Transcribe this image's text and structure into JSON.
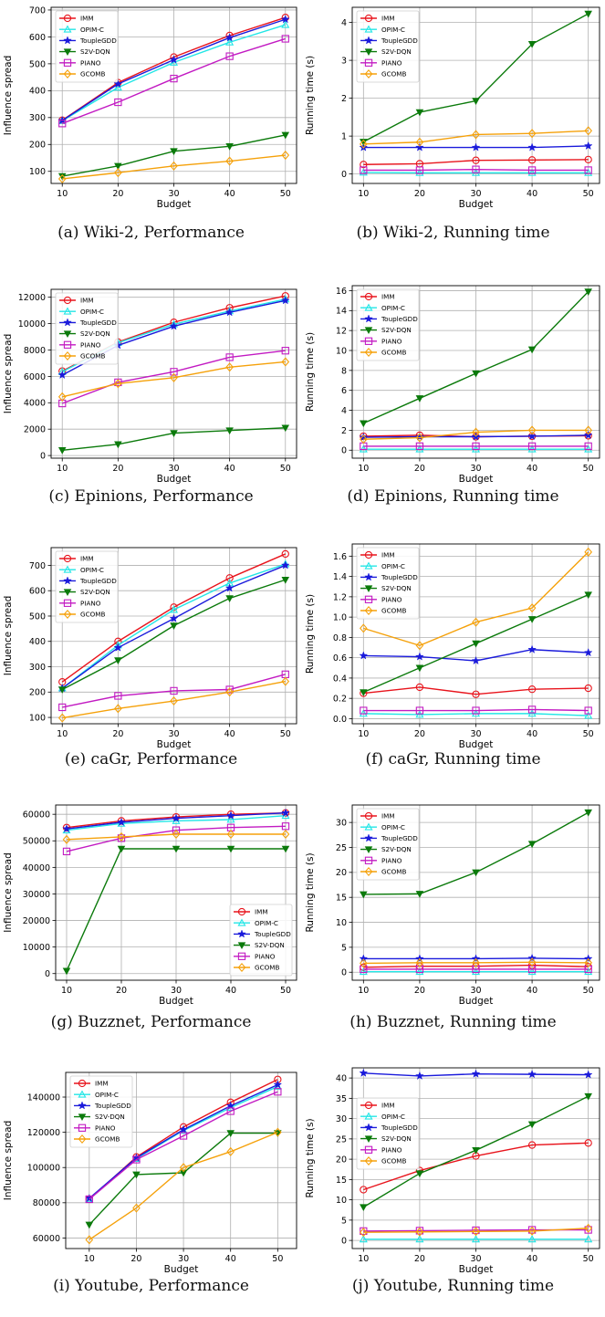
{
  "series_styles": {
    "IMM": {
      "color": "#e8141c",
      "marker": "circle"
    },
    "OPIM-C": {
      "color": "#22e6e6",
      "marker": "triangle-up"
    },
    "ToupleGDD": {
      "color": "#1a1adb",
      "marker": "star"
    },
    "S2V-DQN": {
      "color": "#0b7a0b",
      "marker": "triangle-down"
    },
    "PIANO": {
      "color": "#c21ac2",
      "marker": "square"
    },
    "GCOMB": {
      "color": "#f5a10a",
      "marker": "diamond"
    }
  },
  "chart_data": [
    {
      "id": "a",
      "type": "line",
      "caption": "(a) Wiki-2, Performance",
      "xlabel": "Budget",
      "ylabel": "Influence spread",
      "x": [
        10,
        20,
        30,
        40,
        50
      ],
      "xlim": [
        8,
        52
      ],
      "ylim": [
        55,
        710
      ],
      "xticks": [
        10,
        20,
        30,
        40,
        50
      ],
      "yticks": [
        100,
        200,
        300,
        400,
        500,
        600,
        700
      ],
      "yticklabels": [
        "100",
        "200",
        "300",
        "400",
        "500",
        "600",
        "700"
      ],
      "legend": "top-left",
      "series": [
        {
          "name": "IMM",
          "values": [
            290,
            430,
            525,
            605,
            672
          ]
        },
        {
          "name": "OPIM-C",
          "values": [
            288,
            412,
            505,
            580,
            645
          ]
        },
        {
          "name": "ToupleGDD",
          "values": [
            289,
            425,
            515,
            597,
            665
          ]
        },
        {
          "name": "S2V-DQN",
          "values": [
            82,
            120,
            175,
            193,
            235
          ]
        },
        {
          "name": "PIANO",
          "values": [
            278,
            357,
            445,
            528,
            593
          ]
        },
        {
          "name": "GCOMB",
          "values": [
            72,
            95,
            120,
            138,
            160
          ]
        }
      ]
    },
    {
      "id": "b",
      "type": "line",
      "caption": "(b) Wiki-2, Running time",
      "xlabel": "Budget",
      "ylabel": "Running time (s)",
      "x": [
        10,
        20,
        30,
        40,
        50
      ],
      "xlim": [
        8,
        52
      ],
      "ylim": [
        -0.25,
        4.4
      ],
      "xticks": [
        10,
        20,
        30,
        40,
        50
      ],
      "yticks": [
        0,
        1,
        2,
        3,
        4
      ],
      "yticklabels": [
        "0",
        "1",
        "2",
        "3",
        "4"
      ],
      "legend": "top-left",
      "series": [
        {
          "name": "IMM",
          "values": [
            0.25,
            0.27,
            0.36,
            0.37,
            0.38
          ]
        },
        {
          "name": "OPIM-C",
          "values": [
            0.04,
            0.03,
            0.03,
            0.03,
            0.03
          ]
        },
        {
          "name": "ToupleGDD",
          "values": [
            0.7,
            0.7,
            0.7,
            0.7,
            0.74
          ]
        },
        {
          "name": "S2V-DQN",
          "values": [
            0.85,
            1.63,
            1.93,
            3.43,
            4.23
          ]
        },
        {
          "name": "PIANO",
          "values": [
            0.1,
            0.1,
            0.12,
            0.1,
            0.1
          ]
        },
        {
          "name": "GCOMB",
          "values": [
            0.79,
            0.84,
            1.04,
            1.07,
            1.14
          ]
        }
      ]
    },
    {
      "id": "c",
      "type": "line",
      "caption": "(c) Epinions, Performance",
      "xlabel": "Budget",
      "ylabel": "Influence spread",
      "x": [
        10,
        20,
        30,
        40,
        50
      ],
      "xlim": [
        8,
        52
      ],
      "ylim": [
        -200,
        12600
      ],
      "xticks": [
        10,
        20,
        30,
        40,
        50
      ],
      "yticks": [
        0,
        2000,
        4000,
        6000,
        8000,
        10000,
        12000
      ],
      "yticklabels": [
        "0",
        "2000",
        "4000",
        "6000",
        "8000",
        "10000",
        "12000"
      ],
      "legend": "top-left",
      "series": [
        {
          "name": "IMM",
          "values": [
            6400,
            8600,
            10100,
            11200,
            12100
          ]
        },
        {
          "name": "OPIM-C",
          "values": [
            6350,
            8550,
            9950,
            10950,
            11850
          ]
        },
        {
          "name": "ToupleGDD",
          "values": [
            6100,
            8350,
            9800,
            10850,
            11750
          ]
        },
        {
          "name": "S2V-DQN",
          "values": [
            400,
            850,
            1700,
            1900,
            2100
          ]
        },
        {
          "name": "PIANO",
          "values": [
            3950,
            5550,
            6350,
            7450,
            7950
          ]
        },
        {
          "name": "GCOMB",
          "values": [
            4450,
            5450,
            5900,
            6700,
            7100
          ]
        }
      ]
    },
    {
      "id": "d",
      "type": "line",
      "caption": "(d) Epinions, Running time",
      "xlabel": "Budget",
      "ylabel": "Running time (s)",
      "x": [
        10,
        20,
        30,
        40,
        50
      ],
      "xlim": [
        8,
        52
      ],
      "ylim": [
        -0.8,
        16.5
      ],
      "xticks": [
        10,
        20,
        30,
        40,
        50
      ],
      "yticks": [
        0,
        2,
        4,
        6,
        8,
        10,
        12,
        14,
        16
      ],
      "yticklabels": [
        "0",
        "2",
        "4",
        "6",
        "8",
        "10",
        "12",
        "14",
        "16"
      ],
      "legend": "top-left",
      "series": [
        {
          "name": "IMM",
          "values": [
            1.4,
            1.5,
            1.35,
            1.4,
            1.45
          ]
        },
        {
          "name": "OPIM-C",
          "values": [
            0.1,
            0.1,
            0.1,
            0.1,
            0.1
          ]
        },
        {
          "name": "ToupleGDD",
          "values": [
            1.3,
            1.35,
            1.35,
            1.4,
            1.5
          ]
        },
        {
          "name": "S2V-DQN",
          "values": [
            2.7,
            5.2,
            7.7,
            10.1,
            15.9
          ]
        },
        {
          "name": "PIANO",
          "values": [
            0.4,
            0.4,
            0.4,
            0.4,
            0.4
          ]
        },
        {
          "name": "GCOMB",
          "values": [
            1.1,
            1.25,
            1.8,
            2.0,
            2.0
          ]
        }
      ]
    },
    {
      "id": "e",
      "type": "line",
      "caption": "(e) caGr, Performance",
      "xlabel": "Budget",
      "ylabel": "Influence spread",
      "x": [
        10,
        20,
        30,
        40,
        50
      ],
      "xlim": [
        8,
        52
      ],
      "ylim": [
        75,
        770
      ],
      "xticks": [
        10,
        20,
        30,
        40,
        50
      ],
      "yticks": [
        100,
        200,
        300,
        400,
        500,
        600,
        700
      ],
      "yticklabels": [
        "100",
        "200",
        "300",
        "400",
        "500",
        "600",
        "700"
      ],
      "legend": "top-left",
      "series": [
        {
          "name": "IMM",
          "values": [
            240,
            400,
            535,
            650,
            745
          ]
        },
        {
          "name": "OPIM-C",
          "values": [
            215,
            385,
            525,
            630,
            705
          ]
        },
        {
          "name": "ToupleGDD",
          "values": [
            215,
            375,
            490,
            610,
            700
          ]
        },
        {
          "name": "S2V-DQN",
          "values": [
            210,
            325,
            462,
            570,
            643
          ]
        },
        {
          "name": "PIANO",
          "values": [
            140,
            185,
            205,
            210,
            270
          ]
        },
        {
          "name": "GCOMB",
          "values": [
            98,
            135,
            165,
            200,
            242
          ]
        }
      ]
    },
    {
      "id": "f",
      "type": "line",
      "caption": "(f) caGr, Running time",
      "xlabel": "Budget",
      "ylabel": "Running time (s)",
      "x": [
        10,
        20,
        30,
        40,
        50
      ],
      "xlim": [
        8,
        52
      ],
      "ylim": [
        -0.05,
        1.72
      ],
      "xticks": [
        10,
        20,
        30,
        40,
        50
      ],
      "yticks": [
        0,
        0.2,
        0.4,
        0.6,
        0.8,
        1.0,
        1.2,
        1.4,
        1.6
      ],
      "yticklabels": [
        "0.0",
        "0.2",
        "0.4",
        "0.6",
        "0.8",
        "1.0",
        "1.2",
        "1.4",
        "1.6"
      ],
      "legend": "top-left",
      "series": [
        {
          "name": "IMM",
          "values": [
            0.25,
            0.31,
            0.24,
            0.29,
            0.3
          ]
        },
        {
          "name": "OPIM-C",
          "values": [
            0.05,
            0.04,
            0.05,
            0.05,
            0.03
          ]
        },
        {
          "name": "ToupleGDD",
          "values": [
            0.62,
            0.61,
            0.57,
            0.68,
            0.65
          ]
        },
        {
          "name": "S2V-DQN",
          "values": [
            0.26,
            0.5,
            0.74,
            0.98,
            1.22
          ]
        },
        {
          "name": "PIANO",
          "values": [
            0.08,
            0.08,
            0.08,
            0.09,
            0.08
          ]
        },
        {
          "name": "GCOMB",
          "values": [
            0.89,
            0.72,
            0.95,
            1.09,
            1.64
          ]
        }
      ]
    },
    {
      "id": "g",
      "type": "line",
      "caption": "(g) Buzznet, Performance",
      "xlabel": "Budget",
      "ylabel": "Influence spread",
      "x": [
        10,
        20,
        30,
        40,
        50
      ],
      "xlim": [
        8,
        52
      ],
      "ylim": [
        -2500,
        63500
      ],
      "xticks": [
        10,
        20,
        30,
        40,
        50
      ],
      "yticks": [
        0,
        10000,
        20000,
        30000,
        40000,
        50000,
        60000
      ],
      "yticklabels": [
        "0",
        "10000",
        "20000",
        "30000",
        "40000",
        "50000",
        "60000"
      ],
      "legend": "bottom-right",
      "series": [
        {
          "name": "IMM",
          "values": [
            55000,
            57500,
            59000,
            60000,
            60500
          ]
        },
        {
          "name": "OPIM-C",
          "values": [
            54000,
            56500,
            57500,
            58000,
            59500
          ]
        },
        {
          "name": "ToupleGDD",
          "values": [
            54500,
            57000,
            58500,
            59500,
            60500
          ]
        },
        {
          "name": "S2V-DQN",
          "values": [
            1000,
            47000,
            47000,
            47000,
            47000
          ]
        },
        {
          "name": "PIANO",
          "values": [
            46000,
            51000,
            54000,
            55000,
            55500
          ]
        },
        {
          "name": "GCOMB",
          "values": [
            50500,
            51500,
            52500,
            52500,
            52500
          ]
        }
      ]
    },
    {
      "id": "h",
      "type": "line",
      "caption": "(h) Buzznet, Running time",
      "xlabel": "Budget",
      "ylabel": "Running time (s)",
      "x": [
        10,
        20,
        30,
        40,
        50
      ],
      "xlim": [
        8,
        52
      ],
      "ylim": [
        -1.6,
        33.5
      ],
      "xticks": [
        10,
        20,
        30,
        40,
        50
      ],
      "yticks": [
        0,
        5,
        10,
        15,
        20,
        25,
        30
      ],
      "yticklabels": [
        "0",
        "5",
        "10",
        "15",
        "20",
        "25",
        "30"
      ],
      "legend": "top-left",
      "series": [
        {
          "name": "IMM",
          "values": [
            1.0,
            1.2,
            1.2,
            1.4,
            1.1
          ]
        },
        {
          "name": "OPIM-C",
          "values": [
            0.1,
            0.1,
            0.1,
            0.1,
            0.1
          ]
        },
        {
          "name": "ToupleGDD",
          "values": [
            2.7,
            2.7,
            2.7,
            2.8,
            2.7
          ]
        },
        {
          "name": "S2V-DQN",
          "values": [
            15.6,
            15.7,
            20.0,
            25.7,
            32.0
          ]
        },
        {
          "name": "PIANO",
          "values": [
            0.6,
            0.6,
            0.6,
            0.6,
            0.6
          ]
        },
        {
          "name": "GCOMB",
          "values": [
            1.8,
            1.9,
            1.9,
            2.0,
            1.9
          ]
        }
      ]
    },
    {
      "id": "i",
      "type": "line",
      "caption": "(i) Youtube, Performance",
      "xlabel": "Budget",
      "ylabel": "Influence spread",
      "x": [
        10,
        20,
        30,
        40,
        50
      ],
      "xlim": [
        5,
        54
      ],
      "ylim": [
        54000,
        154000
      ],
      "xticks": [
        10,
        20,
        30,
        40,
        50
      ],
      "yticks": [
        60000,
        80000,
        100000,
        120000,
        140000
      ],
      "yticklabels": [
        "60000",
        "80000",
        "100000",
        "120000",
        "140000"
      ],
      "legend": "top-left",
      "series": [
        {
          "name": "IMM",
          "values": [
            82000,
            106000,
            123000,
            137000,
            150000
          ]
        },
        {
          "name": "OPIM-C",
          "values": [
            82000,
            105000,
            121000,
            134000,
            146000
          ]
        },
        {
          "name": "ToupleGDD",
          "values": [
            82500,
            105500,
            121500,
            135000,
            147000
          ]
        },
        {
          "name": "S2V-DQN",
          "values": [
            67500,
            96000,
            97000,
            119500,
            119500
          ]
        },
        {
          "name": "PIANO",
          "values": [
            82000,
            104500,
            118000,
            132000,
            143000
          ]
        },
        {
          "name": "GCOMB",
          "values": [
            59000,
            77000,
            100000,
            109000,
            120000
          ]
        }
      ]
    },
    {
      "id": "j",
      "type": "line",
      "caption": "(j) Youtube, Running time",
      "xlabel": "Budget",
      "ylabel": "Running time (s)",
      "x": [
        10,
        20,
        30,
        40,
        50
      ],
      "xlim": [
        8,
        52
      ],
      "ylim": [
        -2,
        42.5
      ],
      "xticks": [
        10,
        20,
        30,
        40,
        50
      ],
      "yticks": [
        0,
        5,
        10,
        15,
        20,
        25,
        30,
        35,
        40
      ],
      "yticklabels": [
        "0",
        "5",
        "10",
        "15",
        "20",
        "25",
        "30",
        "35",
        "40"
      ],
      "legend": "upper-middle-left",
      "series": [
        {
          "name": "IMM",
          "values": [
            12.5,
            17.2,
            20.8,
            23.5,
            24.0
          ]
        },
        {
          "name": "OPIM-C",
          "values": [
            0.3,
            0.3,
            0.3,
            0.3,
            0.3
          ]
        },
        {
          "name": "ToupleGDD",
          "values": [
            41.2,
            40.5,
            41.0,
            40.9,
            40.8
          ]
        },
        {
          "name": "S2V-DQN",
          "values": [
            8.2,
            16.5,
            22.2,
            28.6,
            35.5
          ]
        },
        {
          "name": "PIANO",
          "values": [
            2.3,
            2.4,
            2.5,
            2.6,
            2.6
          ]
        },
        {
          "name": "GCOMB",
          "values": [
            2.0,
            2.1,
            2.2,
            2.3,
            3.0
          ]
        }
      ]
    }
  ]
}
